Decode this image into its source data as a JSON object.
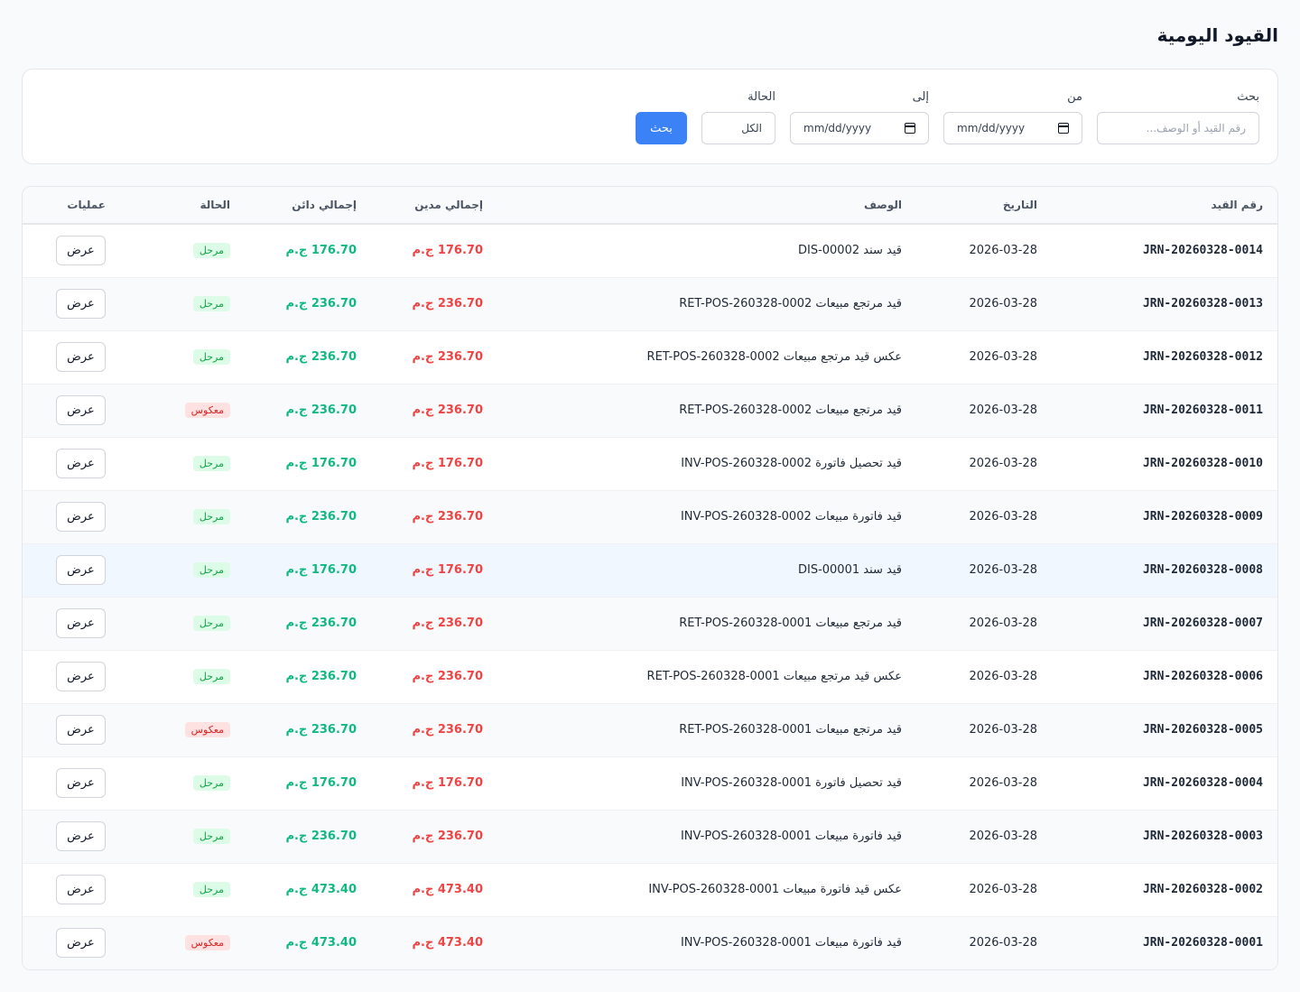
{
  "page": {
    "title": "القيود اليومية"
  },
  "filters": {
    "search_label": "بحث",
    "search_placeholder": "رقم القيد أو الوصف...",
    "from_label": "من",
    "from_value": "mm/dd/yyyy",
    "to_label": "إلى",
    "to_value": "mm/dd/yyyy",
    "status_label": "الحالة",
    "status_value": "الكل",
    "search_button": "بحث"
  },
  "table": {
    "headers": {
      "ref": "رقم القيد",
      "date": "التاريخ",
      "description": "الوصف",
      "debit": "إجمالي مدين",
      "credit": "إجمالي دائن",
      "status": "الحالة",
      "actions": "عمليات"
    },
    "view_label": "عرض",
    "rows": [
      {
        "ref": "JRN-20260328-0014",
        "date": "2026-03-28",
        "description": "قيد سند DIS-00002",
        "debit": "176.70 ج.م",
        "credit": "176.70 ج.م",
        "status": "مرحل",
        "status_type": "posted"
      },
      {
        "ref": "JRN-20260328-0013",
        "date": "2026-03-28",
        "description": "قيد مرتجع مبيعات RET-POS-260328-0002",
        "debit": "236.70 ج.م",
        "credit": "236.70 ج.م",
        "status": "مرحل",
        "status_type": "posted"
      },
      {
        "ref": "JRN-20260328-0012",
        "date": "2026-03-28",
        "description": "عكس قيد مرتجع مبيعات RET-POS-260328-0002",
        "debit": "236.70 ج.م",
        "credit": "236.70 ج.م",
        "status": "مرحل",
        "status_type": "posted"
      },
      {
        "ref": "JRN-20260328-0011",
        "date": "2026-03-28",
        "description": "قيد مرتجع مبيعات RET-POS-260328-0002",
        "debit": "236.70 ج.م",
        "credit": "236.70 ج.م",
        "status": "معكوس",
        "status_type": "reversed"
      },
      {
        "ref": "JRN-20260328-0010",
        "date": "2026-03-28",
        "description": "قيد تحصيل فاتورة INV-POS-260328-0002",
        "debit": "176.70 ج.م",
        "credit": "176.70 ج.م",
        "status": "مرحل",
        "status_type": "posted"
      },
      {
        "ref": "JRN-20260328-0009",
        "date": "2026-03-28",
        "description": "قيد فاتورة مبيعات INV-POS-260328-0002",
        "debit": "236.70 ج.م",
        "credit": "236.70 ج.م",
        "status": "مرحل",
        "status_type": "posted"
      },
      {
        "ref": "JRN-20260328-0008",
        "date": "2026-03-28",
        "description": "قيد سند DIS-00001",
        "debit": "176.70 ج.م",
        "credit": "176.70 ج.م",
        "status": "مرحل",
        "status_type": "posted"
      },
      {
        "ref": "JRN-20260328-0007",
        "date": "2026-03-28",
        "description": "قيد مرتجع مبيعات RET-POS-260328-0001",
        "debit": "236.70 ج.م",
        "credit": "236.70 ج.م",
        "status": "مرحل",
        "status_type": "posted"
      },
      {
        "ref": "JRN-20260328-0006",
        "date": "2026-03-28",
        "description": "عكس قيد مرتجع مبيعات RET-POS-260328-0001",
        "debit": "236.70 ج.م",
        "credit": "236.70 ج.م",
        "status": "مرحل",
        "status_type": "posted"
      },
      {
        "ref": "JRN-20260328-0005",
        "date": "2026-03-28",
        "description": "قيد مرتجع مبيعات RET-POS-260328-0001",
        "debit": "236.70 ج.م",
        "credit": "236.70 ج.م",
        "status": "معكوس",
        "status_type": "reversed"
      },
      {
        "ref": "JRN-20260328-0004",
        "date": "2026-03-28",
        "description": "قيد تحصيل فاتورة INV-POS-260328-0001",
        "debit": "176.70 ج.م",
        "credit": "176.70 ج.م",
        "status": "مرحل",
        "status_type": "posted"
      },
      {
        "ref": "JRN-20260328-0003",
        "date": "2026-03-28",
        "description": "قيد فاتورة مبيعات INV-POS-260328-0001",
        "debit": "236.70 ج.م",
        "credit": "236.70 ج.م",
        "status": "مرحل",
        "status_type": "posted"
      },
      {
        "ref": "JRN-20260328-0002",
        "date": "2026-03-28",
        "description": "عكس قيد فاتورة مبيعات INV-POS-260328-0001",
        "debit": "473.40 ج.م",
        "credit": "473.40 ج.م",
        "status": "مرحل",
        "status_type": "posted"
      },
      {
        "ref": "JRN-20260328-0001",
        "date": "2026-03-28",
        "description": "قيد فاتورة مبيعات INV-POS-260328-0001",
        "debit": "473.40 ج.م",
        "credit": "473.40 ج.م",
        "status": "معكوس",
        "status_type": "reversed"
      }
    ]
  }
}
